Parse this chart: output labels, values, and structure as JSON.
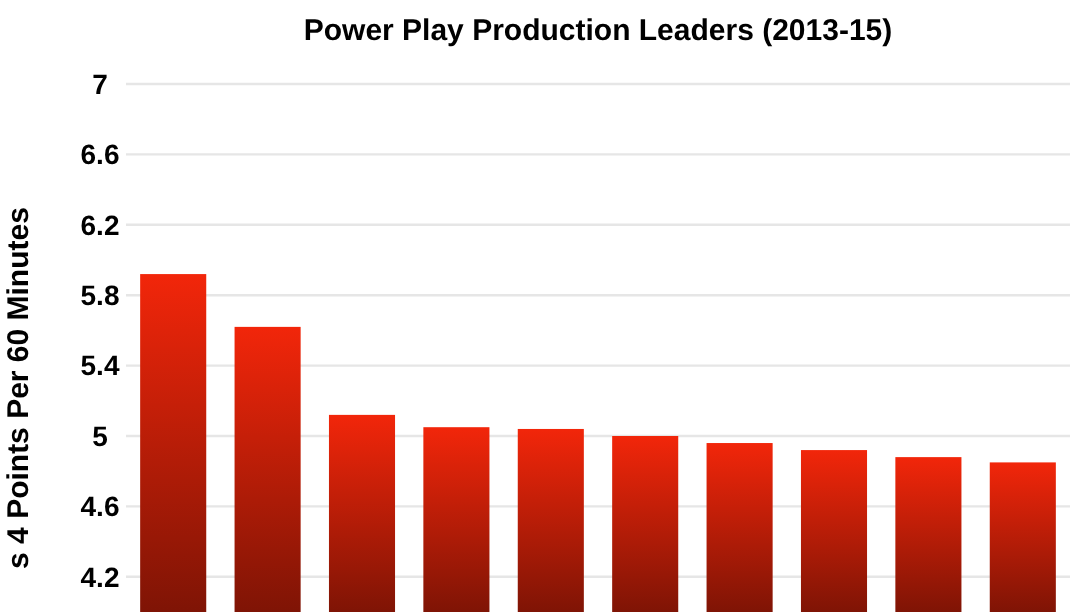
{
  "chart_data": {
    "type": "bar",
    "title": "Power Play Production Leaders (2013-15)",
    "ylabel": "s 4 Points Per 60 Minutes",
    "categories": [
      null,
      null,
      null,
      null,
      null,
      null,
      null,
      null,
      null,
      null
    ],
    "values": [
      5.92,
      5.62,
      5.12,
      5.05,
      5.04,
      5.0,
      4.96,
      4.92,
      4.88,
      4.85
    ],
    "color": "#f2260a",
    "ylim": [
      4.0,
      7
    ],
    "yticks": [
      4.2,
      4.6,
      5,
      5.4,
      5.8,
      6.2,
      6.6,
      7
    ],
    "grid": "y"
  }
}
